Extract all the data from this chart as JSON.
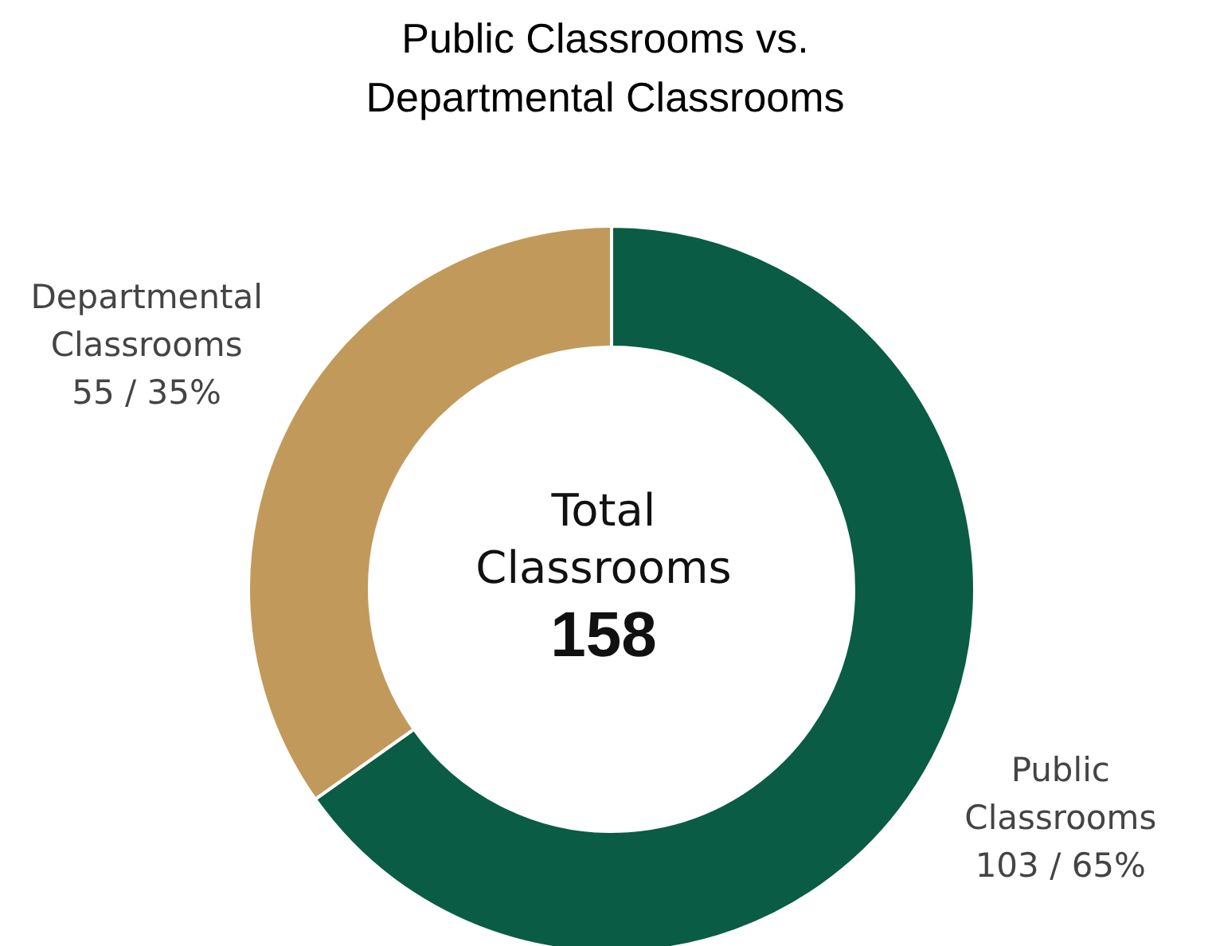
{
  "chart_data": {
    "type": "donut",
    "title": "Public Classrooms vs. Departmental Classrooms",
    "categories": [
      "Public Classrooms",
      "Departmental Classrooms"
    ],
    "values": [
      103,
      55
    ],
    "colors": [
      "#0a5c45",
      "#c19a5b"
    ],
    "value_labels": [
      "103 / 65%",
      "55 / 35%"
    ],
    "annotations": [
      "Total Classrooms",
      "158"
    ],
    "legend": false
  }
}
